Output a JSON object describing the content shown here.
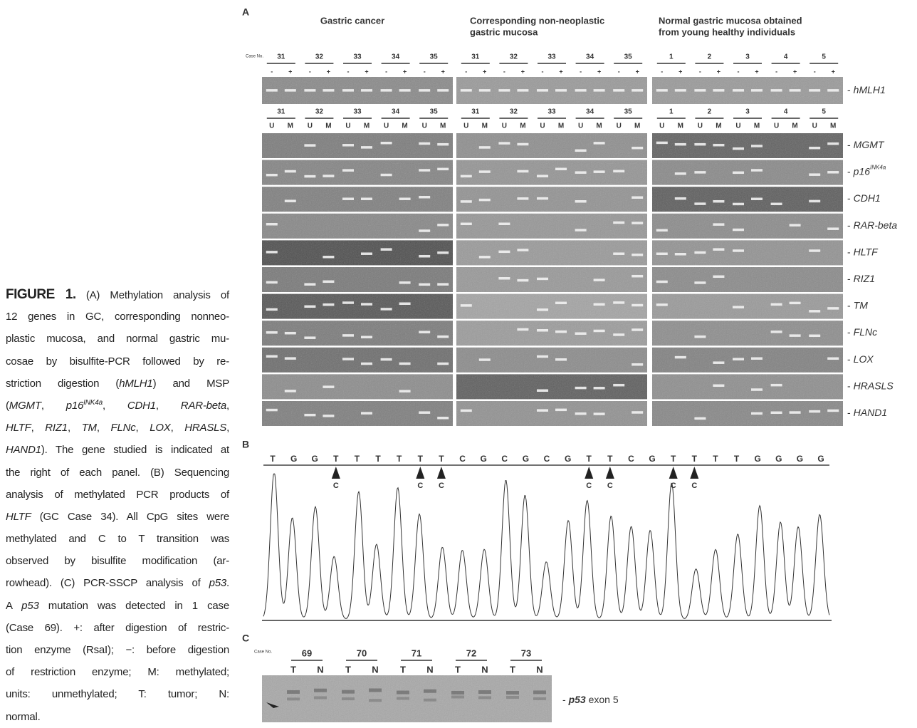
{
  "caption": {
    "lines": [
      [
        {
          "text": "FIGURE 1.",
          "style": "bold"
        },
        {
          "text": " (A) Methylation analysis of"
        }
      ],
      [
        {
          "text": "12 genes in GC, corresponding nonneo-"
        }
      ],
      [
        {
          "text": "plastic mucosa, and normal gastric mu-"
        }
      ],
      [
        {
          "text": "cosae by bisulfite-PCR followed by re-"
        }
      ],
      [
        {
          "text": "striction digestion ("
        },
        {
          "text": "hMLH1",
          "style": "italic"
        },
        {
          "text": ") and MSP"
        }
      ],
      [
        {
          "text": "("
        },
        {
          "text": "MGMT",
          "style": "italic"
        },
        {
          "text": ", "
        },
        {
          "text": "p16",
          "style": "italic"
        },
        {
          "text": "INK4a",
          "style": "italic-sup"
        },
        {
          "text": ", "
        },
        {
          "text": "CDH1",
          "style": "italic"
        },
        {
          "text": ", "
        },
        {
          "text": "RAR-beta",
          "style": "italic"
        },
        {
          "text": ","
        }
      ],
      [
        {
          "text": "HLTF",
          "style": "italic"
        },
        {
          "text": ", "
        },
        {
          "text": "RIZ1",
          "style": "italic"
        },
        {
          "text": ", "
        },
        {
          "text": "TM",
          "style": "italic"
        },
        {
          "text": ", "
        },
        {
          "text": "FLNc",
          "style": "italic"
        },
        {
          "text": ", "
        },
        {
          "text": "LOX",
          "style": "italic"
        },
        {
          "text": ", "
        },
        {
          "text": "HRASLS",
          "style": "italic"
        },
        {
          "text": ","
        }
      ],
      [
        {
          "text": "HAND1",
          "style": "italic"
        },
        {
          "text": "). The gene studied is indicated at"
        }
      ],
      [
        {
          "text": "the right of each panel. (B) Sequencing"
        }
      ],
      [
        {
          "text": "analysis of methylated PCR products of"
        }
      ],
      [
        {
          "text": "HLTF",
          "style": "italic"
        },
        {
          "text": " (GC Case 34). All CpG sites were"
        }
      ],
      [
        {
          "text": "methylated and C to T transition was"
        }
      ],
      [
        {
          "text": "observed by bisulfite modification (ar-"
        }
      ],
      [
        {
          "text": "rowhead). (C) PCR-SSCP analysis of "
        },
        {
          "text": "p53",
          "style": "italic"
        },
        {
          "text": "."
        }
      ],
      [
        {
          "text": "A "
        },
        {
          "text": "p53",
          "style": "italic"
        },
        {
          "text": " mutation was detected in 1 case"
        }
      ],
      [
        {
          "text": "(Case 69). +: after digestion of restric-"
        }
      ],
      [
        {
          "text": "tion enzyme (RsaI); −: before digestion"
        }
      ],
      [
        {
          "text": "of restriction enzyme; M: methylated;"
        }
      ],
      [
        {
          "text": "units: unmethylated; T: tumor; N:"
        }
      ],
      [
        {
          "text": "normal."
        }
      ]
    ]
  },
  "panel_a": {
    "label": "A",
    "case_label": "Case No.",
    "groups": [
      {
        "title": [
          "Gastric cancer"
        ],
        "cases": [
          31,
          32,
          33,
          34,
          35
        ]
      },
      {
        "title": [
          "Corresponding non-neoplastic",
          "gastric mucosa"
        ],
        "cases": [
          31,
          32,
          33,
          34,
          35
        ]
      },
      {
        "title": [
          "Normal gastric mucosa obtained",
          "from young healthy individuals"
        ],
        "cases": [
          1,
          2,
          3,
          4,
          5
        ]
      }
    ],
    "lanes_digestion": [
      "-",
      "+"
    ],
    "lanes_msp": [
      "U",
      "M"
    ],
    "gene_prefix": "-",
    "genes": [
      {
        "name": "hMLH1"
      },
      {
        "name": "MGMT"
      },
      {
        "name": "p16",
        "sup": "INK4a"
      },
      {
        "name": "CDH1"
      },
      {
        "name": "RAR-beta"
      },
      {
        "name": "HLTF"
      },
      {
        "name": "RIZ1"
      },
      {
        "name": "TM"
      },
      {
        "name": "FLNc"
      },
      {
        "name": "LOX"
      },
      {
        "name": "HRASLS"
      },
      {
        "name": "HAND1"
      }
    ]
  },
  "panel_b": {
    "label": "B",
    "sequence": [
      "T",
      "G",
      "G",
      "T",
      "T",
      "T",
      "T",
      "T",
      "T",
      "C",
      "G",
      "C",
      "G",
      "C",
      "G",
      "T",
      "T",
      "C",
      "G",
      "T",
      "T",
      "T",
      "T",
      "G",
      "G",
      "G",
      "G"
    ],
    "arrows": [
      {
        "position": 3,
        "label": "C"
      },
      {
        "position": 7,
        "label": "C"
      },
      {
        "position": 8,
        "label": "C"
      },
      {
        "position": 15,
        "label": "C"
      },
      {
        "position": 16,
        "label": "C"
      },
      {
        "position": 19,
        "label": "C"
      },
      {
        "position": 20,
        "label": "C"
      }
    ]
  },
  "panel_c": {
    "label": "C",
    "case_label": "Case No.",
    "cases": [
      69,
      70,
      71,
      72,
      73
    ],
    "lanes": [
      "T",
      "N"
    ],
    "gel_label": [
      {
        "text": "- "
      },
      {
        "text": "p53",
        "style": "italic"
      },
      {
        "text": " exon 5"
      }
    ]
  }
}
